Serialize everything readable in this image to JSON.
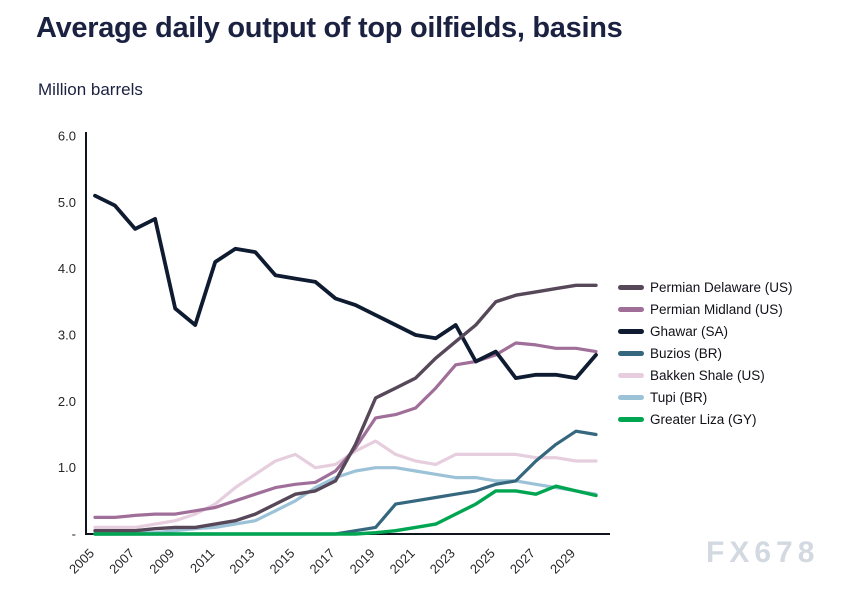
{
  "header": {
    "title": "Average daily output of top oilfields, basins",
    "subtitle": "Million barrels"
  },
  "watermark": "FX678",
  "chart_data": {
    "type": "line",
    "title": "Average daily output of top oilfields, basins",
    "ylabel": "Million barrels",
    "xlabel": "",
    "grid": false,
    "legend_position": "right",
    "xlim": [
      2005,
      2030
    ],
    "ylim": [
      0,
      6
    ],
    "x": [
      2005,
      2006,
      2007,
      2008,
      2009,
      2010,
      2011,
      2012,
      2013,
      2014,
      2015,
      2016,
      2017,
      2018,
      2019,
      2020,
      2021,
      2022,
      2023,
      2024,
      2025,
      2026,
      2027,
      2028,
      2029,
      2030
    ],
    "x_tick_labels": [
      "2005",
      "2007",
      "2009",
      "2011",
      "2013",
      "2015",
      "2017",
      "2019",
      "2021",
      "2023",
      "2025",
      "2027",
      "2029"
    ],
    "y_ticks": [
      {
        "value": 6,
        "label": "6.0"
      },
      {
        "value": 5,
        "label": "5.0"
      },
      {
        "value": 4,
        "label": "4.0"
      },
      {
        "value": 3,
        "label": "3.0"
      },
      {
        "value": 2,
        "label": "2.0"
      },
      {
        "value": 1,
        "label": "1.0"
      },
      {
        "value": 0,
        "label": "-"
      }
    ],
    "series": [
      {
        "name": "Permian Delaware (US)",
        "color": "#564759",
        "width": 3.4,
        "values": [
          0.05,
          0.05,
          0.05,
          0.08,
          0.1,
          0.1,
          0.15,
          0.2,
          0.3,
          0.45,
          0.6,
          0.65,
          0.8,
          1.35,
          2.05,
          2.2,
          2.35,
          2.65,
          2.9,
          3.15,
          3.5,
          3.6,
          3.65,
          3.7,
          3.75,
          3.75
        ]
      },
      {
        "name": "Permian Midland (US)",
        "color": "#a06f99",
        "width": 3.2,
        "values": [
          0.25,
          0.25,
          0.28,
          0.3,
          0.3,
          0.35,
          0.4,
          0.5,
          0.6,
          0.7,
          0.75,
          0.78,
          0.95,
          1.3,
          1.75,
          1.8,
          1.9,
          2.2,
          2.55,
          2.6,
          2.7,
          2.88,
          2.85,
          2.8,
          2.8,
          2.75
        ]
      },
      {
        "name": "Ghawar (SA)",
        "color": "#0e1b30",
        "width": 3.8,
        "values": [
          5.1,
          4.95,
          4.6,
          4.75,
          3.4,
          3.15,
          4.1,
          4.3,
          4.25,
          3.9,
          3.85,
          3.8,
          3.55,
          3.45,
          3.3,
          3.15,
          3.0,
          2.95,
          3.15,
          2.6,
          2.75,
          2.35,
          2.4,
          2.4,
          2.35,
          2.7
        ]
      },
      {
        "name": "Buzios (BR)",
        "color": "#35687e",
        "width": 3.2,
        "values": [
          0,
          0,
          0,
          0,
          0,
          0,
          0,
          0,
          0,
          0,
          0,
          0,
          0,
          0.05,
          0.1,
          0.45,
          0.5,
          0.55,
          0.6,
          0.65,
          0.75,
          0.8,
          1.1,
          1.35,
          1.55,
          1.5
        ]
      },
      {
        "name": "Bakken Shale (US)",
        "color": "#e6cede",
        "width": 3.2,
        "values": [
          0.1,
          0.1,
          0.1,
          0.15,
          0.2,
          0.3,
          0.45,
          0.7,
          0.9,
          1.1,
          1.2,
          1.0,
          1.05,
          1.25,
          1.4,
          1.2,
          1.1,
          1.05,
          1.2,
          1.2,
          1.2,
          1.2,
          1.15,
          1.15,
          1.1,
          1.1
        ]
      },
      {
        "name": "Tupi (BR)",
        "color": "#9cc2d8",
        "width": 3.2,
        "values": [
          0,
          0,
          0.02,
          0.02,
          0.05,
          0.08,
          0.1,
          0.15,
          0.2,
          0.35,
          0.5,
          0.7,
          0.85,
          0.95,
          1.0,
          1.0,
          0.95,
          0.9,
          0.85,
          0.85,
          0.8,
          0.8,
          0.75,
          0.7,
          0.65,
          0.6
        ]
      },
      {
        "name": "Greater Liza (GY)",
        "color": "#00a551",
        "width": 3.4,
        "values": [
          0,
          0,
          0,
          0,
          0,
          0,
          0,
          0,
          0,
          0,
          0,
          0,
          0,
          0,
          0.02,
          0.05,
          0.1,
          0.15,
          0.3,
          0.45,
          0.65,
          0.65,
          0.6,
          0.72,
          0.65,
          0.58
        ]
      }
    ],
    "draw_order": [
      4,
      5,
      1,
      3,
      2,
      0,
      6
    ]
  }
}
